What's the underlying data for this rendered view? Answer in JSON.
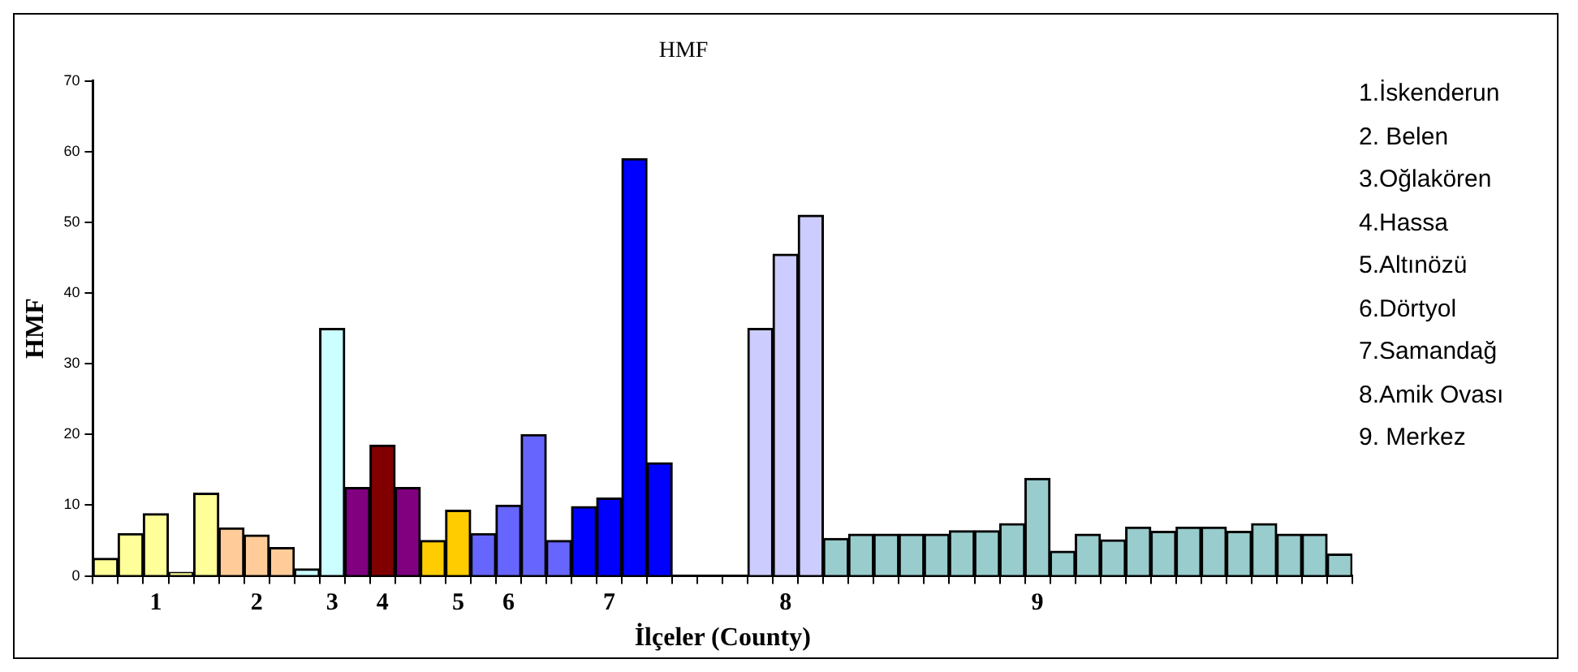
{
  "chart_data": {
    "type": "bar",
    "title": "HMF",
    "xlabel": "İlçeler (County)",
    "ylabel": "HMF",
    "categories": [
      null,
      null,
      "1",
      null,
      null,
      null,
      "2",
      null,
      null,
      "3",
      null,
      "4",
      null,
      null,
      "5",
      null,
      "6",
      null,
      null,
      null,
      "7",
      null,
      null,
      null,
      null,
      null,
      null,
      "8",
      null,
      null,
      null,
      null,
      null,
      null,
      null,
      null,
      null,
      "9",
      null,
      null,
      null,
      null,
      null,
      null,
      null,
      null,
      null,
      null,
      null,
      null
    ],
    "values": [
      2.5,
      6,
      8.8,
      0.5,
      11.7,
      6.8,
      5.8,
      4,
      1,
      35,
      12.5,
      18.5,
      12.5,
      5,
      9.3,
      6,
      10,
      20,
      5,
      9.8,
      11,
      59,
      16,
      null,
      null,
      null,
      35,
      45.5,
      51,
      5.3,
      5.9,
      5.9,
      5.9,
      5.9,
      6.4,
      6.4,
      7.4,
      13.8,
      3.5,
      5.9,
      5.1,
      6.9,
      6.3,
      6.9,
      6.9,
      6.3,
      7.4,
      5.9,
      5.9,
      3.1
    ],
    "colors": [
      "#ffff99",
      "#ffff99",
      "#ffff99",
      "#ffff99",
      "#ffff99",
      "#ffcc99",
      "#ffcc99",
      "#ffcc99",
      "#ccffff",
      "#ccffff",
      "#800080",
      "#800000",
      "#800080",
      "#ffcc00",
      "#ffcc00",
      "#6666ff",
      "#6666ff",
      "#6666ff",
      "#6666ff",
      "#0000ff",
      "#0000ff",
      "#0000ff",
      "#0000ff",
      "#ffffff",
      "#ffffff",
      "#ffffff",
      "#ccccff",
      "#ccccff",
      "#ccccff",
      "#99cccc",
      "#99cccc",
      "#99cccc",
      "#99cccc",
      "#99cccc",
      "#99cccc",
      "#99cccc",
      "#99cccc",
      "#99cccc",
      "#99cccc",
      "#99cccc",
      "#99cccc",
      "#99cccc",
      "#99cccc",
      "#99cccc",
      "#99cccc",
      "#99cccc",
      "#99cccc",
      "#99cccc",
      "#99cccc",
      "#99cccc"
    ],
    "ylim": [
      0,
      70
    ],
    "yticks": [
      0,
      10,
      20,
      30,
      40,
      50,
      60,
      70
    ],
    "grid": false,
    "annotations": [
      "1.İskenderun",
      "2. Belen",
      "3.Oğlakören",
      "4.Hassa",
      "5.Altınözü",
      "6.Dörtyol",
      "7.Samandağ",
      "8.Amik Ovası",
      "9. Merkez"
    ]
  }
}
